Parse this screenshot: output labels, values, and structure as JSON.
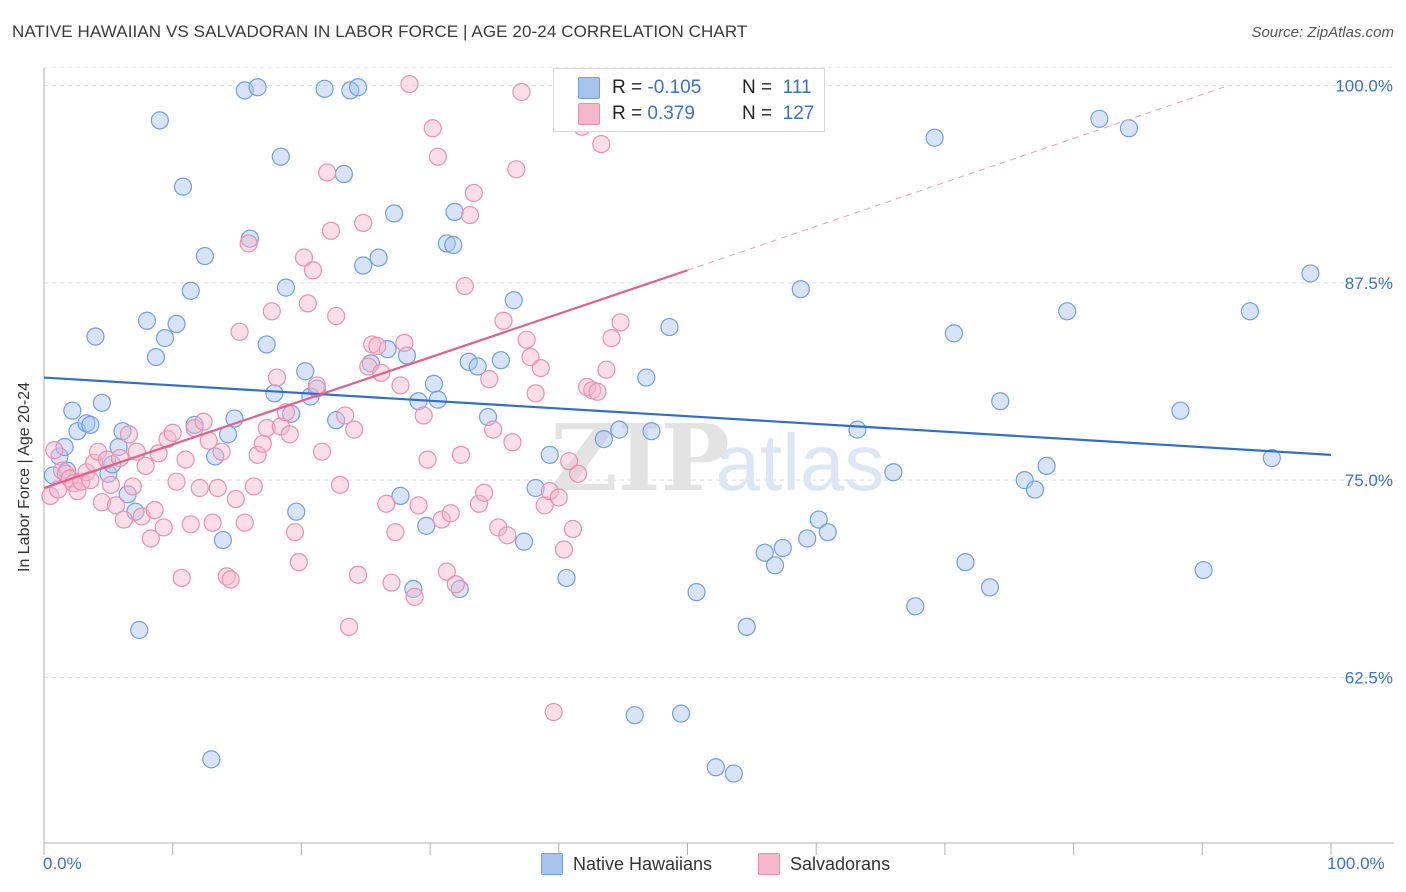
{
  "title": "NATIVE HAWAIIAN VS SALVADORAN IN LABOR FORCE | AGE 20-24 CORRELATION CHART",
  "source": "Source: ZipAtlas.com",
  "watermark": {
    "zip": "ZIP",
    "atlas": "atlas"
  },
  "legend_top": {
    "rows": [
      {
        "r_label": "R =",
        "r_value": "-0.105",
        "n_label": "N =",
        "n_value": "111",
        "color": "#a8c4ec"
      },
      {
        "r_label": "R =",
        "r_value": "0.379",
        "n_label": "N =",
        "n_value": "127",
        "color": "#f5b8cb"
      }
    ]
  },
  "legend_bottom": [
    {
      "label": "Native Hawaiians",
      "color": "#a8c4ec"
    },
    {
      "label": "Salvadorans",
      "color": "#f5b8cb"
    }
  ],
  "axes": {
    "x_min_label": "0.0%",
    "x_max_label": "100.0%",
    "y_ticks": [
      "100.0%",
      "87.5%",
      "75.0%",
      "62.5%"
    ],
    "ylabel": "In Labor Force | Age 20-24"
  },
  "chart_data": {
    "type": "scatter",
    "title": "NATIVE HAWAIIAN VS SALVADORAN IN LABOR FORCE | AGE 20-24 CORRELATION CHART",
    "xlabel": "",
    "ylabel": "In Labor Force | Age 20-24",
    "xlim": [
      0,
      100
    ],
    "ylim": [
      52,
      101.5
    ],
    "y_ticks": [
      62.5,
      75.0,
      87.5,
      100.0
    ],
    "grid": true,
    "legend": "top-center",
    "series": [
      {
        "name": "Native Hawaiians",
        "color": "#6f9fe0",
        "fill": "#a8c4ec",
        "trend": {
          "x": [
            0,
            100
          ],
          "y": [
            81.5,
            76.6
          ]
        },
        "x": [
          0.7,
          1.2,
          1.6,
          1.8,
          2.2,
          2.6,
          3.3,
          3.6,
          4.0,
          4.5,
          5.0,
          5.3,
          5.8,
          6.1,
          6.5,
          7.1,
          7.4,
          8.0,
          8.7,
          9.0,
          9.4,
          10.3,
          10.8,
          11.4,
          11.7,
          12.5,
          13.0,
          13.3,
          13.9,
          14.3,
          14.8,
          15.6,
          16.0,
          16.6,
          17.3,
          17.9,
          18.4,
          18.8,
          19.2,
          19.6,
          20.3,
          20.7,
          21.2,
          21.8,
          22.7,
          23.3,
          23.8,
          24.4,
          24.8,
          25.4,
          26.0,
          26.7,
          27.2,
          27.7,
          28.2,
          28.7,
          29.1,
          29.7,
          30.3,
          30.6,
          31.3,
          31.8,
          31.9,
          32.3,
          33.0,
          33.7,
          34.5,
          35.5,
          36.5,
          37.3,
          38.2,
          39.3,
          40.6,
          42.1,
          43.5,
          44.7,
          45.9,
          46.8,
          47.2,
          48.6,
          49.5,
          50.7,
          52.2,
          53.6,
          54.6,
          56.0,
          56.8,
          57.4,
          58.8,
          59.3,
          60.2,
          60.9,
          63.2,
          66.0,
          67.7,
          69.2,
          70.7,
          71.6,
          73.5,
          74.3,
          76.2,
          77.0,
          77.9,
          79.5,
          82.0,
          84.3,
          88.3,
          90.1,
          93.7,
          95.4,
          98.4
        ],
        "y": [
          75.3,
          76.5,
          77.1,
          75.6,
          79.4,
          78.1,
          78.6,
          78.5,
          84.1,
          79.9,
          75.4,
          76.0,
          77.1,
          78.1,
          74.1,
          73.0,
          65.5,
          85.1,
          82.8,
          97.8,
          84.0,
          84.9,
          93.6,
          87.0,
          78.5,
          89.2,
          57.3,
          76.5,
          71.2,
          77.9,
          78.9,
          99.7,
          90.3,
          99.9,
          83.6,
          80.5,
          95.5,
          87.2,
          79.2,
          73.0,
          81.9,
          80.3,
          80.8,
          99.8,
          78.8,
          94.4,
          99.7,
          99.9,
          88.6,
          82.4,
          89.1,
          83.3,
          91.9,
          74.0,
          82.9,
          68.1,
          80.0,
          72.1,
          81.1,
          80.1,
          90.0,
          89.9,
          92.0,
          68.1,
          82.5,
          82.2,
          79.0,
          82.6,
          86.4,
          71.1,
          74.5,
          76.6,
          68.8,
          99.9,
          77.6,
          78.2,
          60.1,
          81.5,
          78.1,
          84.7,
          60.2,
          67.9,
          56.8,
          56.4,
          65.7,
          70.4,
          69.6,
          70.7,
          87.1,
          71.3,
          72.5,
          71.7,
          78.2,
          75.5,
          67.0,
          96.7,
          84.3,
          69.8,
          68.2,
          80.0,
          75.0,
          74.4,
          75.9,
          85.7,
          97.9,
          97.3,
          79.4,
          69.3,
          85.7,
          76.4,
          88.1
        ]
      },
      {
        "name": "Salvadorans",
        "color": "#ec8eae",
        "fill": "#f5b8cb",
        "trend": {
          "x": [
            0,
            50,
            92
          ],
          "y": [
            74.5,
            88.3,
            100.0
          ],
          "solid_until": 50
        },
        "x": [
          0.5,
          0.8,
          1.1,
          1.4,
          1.7,
          2.0,
          2.3,
          2.6,
          2.9,
          3.3,
          3.6,
          3.9,
          4.2,
          4.5,
          4.9,
          5.2,
          5.6,
          5.9,
          6.2,
          6.6,
          6.9,
          7.2,
          7.6,
          7.9,
          8.3,
          8.6,
          8.9,
          9.3,
          9.6,
          10.0,
          10.3,
          10.7,
          11.0,
          11.4,
          11.7,
          12.1,
          12.4,
          12.8,
          13.1,
          13.5,
          13.8,
          14.2,
          14.5,
          14.9,
          15.2,
          15.6,
          15.9,
          16.3,
          16.6,
          17.0,
          17.3,
          17.7,
          18.1,
          18.4,
          18.8,
          19.1,
          19.5,
          19.8,
          20.2,
          20.5,
          20.9,
          21.2,
          21.6,
          22.0,
          22.3,
          22.7,
          23.0,
          23.4,
          23.7,
          24.1,
          24.4,
          24.8,
          25.2,
          25.5,
          25.9,
          26.2,
          26.6,
          27.0,
          27.3,
          27.7,
          28.0,
          28.4,
          28.8,
          29.1,
          29.5,
          29.8,
          30.2,
          30.6,
          30.9,
          31.3,
          31.6,
          32.0,
          32.4,
          32.7,
          33.1,
          33.4,
          33.8,
          34.2,
          34.6,
          34.9,
          35.3,
          35.7,
          36.0,
          36.4,
          36.7,
          37.1,
          37.5,
          37.8,
          38.2,
          38.6,
          38.9,
          39.3,
          39.6,
          40.0,
          40.4,
          40.8,
          41.1,
          41.5,
          41.8,
          42.2,
          42.6,
          43.0,
          43.3,
          43.7,
          44.1,
          44.4,
          44.8
        ],
        "y": [
          74.0,
          76.9,
          74.4,
          75.6,
          75.4,
          75.1,
          74.8,
          74.3,
          74.9,
          75.5,
          75.0,
          76.1,
          76.8,
          73.6,
          76.3,
          74.7,
          73.4,
          76.4,
          72.5,
          77.9,
          74.6,
          76.8,
          72.7,
          75.9,
          71.3,
          73.1,
          76.7,
          72.0,
          77.6,
          78.0,
          74.9,
          68.8,
          76.3,
          72.2,
          78.3,
          74.5,
          78.7,
          77.5,
          72.3,
          74.5,
          76.8,
          68.9,
          68.7,
          73.8,
          84.4,
          72.3,
          90.0,
          74.6,
          76.6,
          77.3,
          78.3,
          85.7,
          81.5,
          78.4,
          79.3,
          77.9,
          71.7,
          69.8,
          89.1,
          86.2,
          88.3,
          81.0,
          76.8,
          94.5,
          90.8,
          85.4,
          74.7,
          79.1,
          65.7,
          78.2,
          69.0,
          91.3,
          82.2,
          83.6,
          83.5,
          81.8,
          73.5,
          68.5,
          71.7,
          81.0,
          83.7,
          100.1,
          67.6,
          73.4,
          79.1,
          76.3,
          97.3,
          95.5,
          72.5,
          69.2,
          72.9,
          68.4,
          76.6,
          87.3,
          91.8,
          93.2,
          73.5,
          74.2,
          81.4,
          78.2,
          72.0,
          85.1,
          71.5,
          77.4,
          94.7,
          99.6,
          83.9,
          82.8,
          80.5,
          82.1,
          73.4,
          74.3,
          60.3,
          73.9,
          70.6,
          76.2,
          71.9,
          75.4,
          97.4,
          80.9,
          80.7,
          80.6,
          96.3,
          82.0,
          84.0,
          99.3,
          85.0
        ]
      }
    ]
  }
}
